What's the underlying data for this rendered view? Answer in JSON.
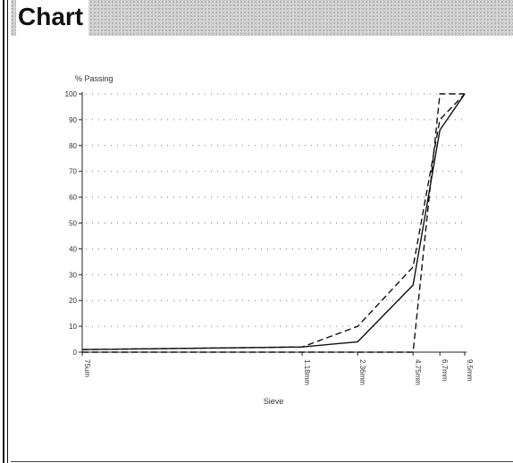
{
  "header": {
    "title": "Chart"
  },
  "chart_data": {
    "type": "line",
    "title": "",
    "ylabel": "% Passing",
    "xlabel": "Sieve",
    "ylim": [
      0,
      100
    ],
    "yticks": [
      0,
      10,
      20,
      30,
      40,
      50,
      60,
      70,
      80,
      90,
      100
    ],
    "categories": [
      "75um",
      "1.18mm",
      "2.36mm",
      "4.75mm",
      "6.7mm",
      "9.5mm"
    ],
    "grid": true,
    "legend": "none",
    "series": [
      {
        "style": "solid",
        "color": "#111111",
        "values": [
          1,
          2,
          4,
          26,
          86,
          100
        ]
      },
      {
        "style": "dashed",
        "color": "#111111",
        "values": [
          1,
          2,
          10,
          33,
          90,
          100
        ]
      },
      {
        "style": "dashed",
        "color": "#111111",
        "values": [
          0,
          0,
          0,
          0,
          100,
          100
        ]
      }
    ]
  }
}
